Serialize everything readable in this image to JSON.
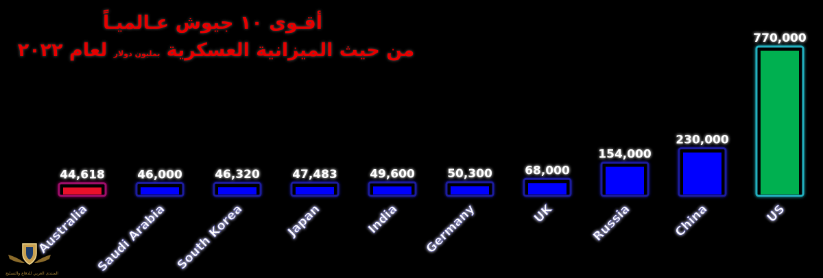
{
  "chart_data": {
    "type": "bar",
    "title": "أقـوى ١٠ جيوش عـالميـاً",
    "subtitle": "من حيث الميزانية العسكرية",
    "unit": "بمليون دولار",
    "year": "لعام ٢٠٢٢",
    "categories": [
      "Australia",
      "Saudi Arabia",
      "South Korea",
      "Japan",
      "India",
      "Germany",
      "UK",
      "Russia",
      "China",
      "US"
    ],
    "values": [
      44618,
      46000,
      46320,
      47483,
      49600,
      50300,
      68000,
      154000,
      230000,
      770000
    ],
    "value_labels": [
      "44,618",
      "46,000",
      "46,320",
      "47,483",
      "49,600",
      "50,300",
      "68,000",
      "154,000",
      "230,000",
      "770,000"
    ],
    "ylim": [
      0,
      770000
    ],
    "xlabel": "",
    "ylabel": "",
    "grid": false,
    "colors": {
      "default_bar": "#0000ff",
      "default_glow": "#1a1aa0",
      "highlight_low": "#e8102a",
      "highlight_low_glow": "#a0106a",
      "highlight_high": "#00b050",
      "highlight_high_glow": "#20b0c0",
      "baseline": "#3a7fff",
      "title": "#e60000",
      "labels": "#ffffff"
    }
  },
  "logo": {
    "name": "shield-wings-logo",
    "caption": "المنتدى العربي للدفاع والتسليح"
  }
}
